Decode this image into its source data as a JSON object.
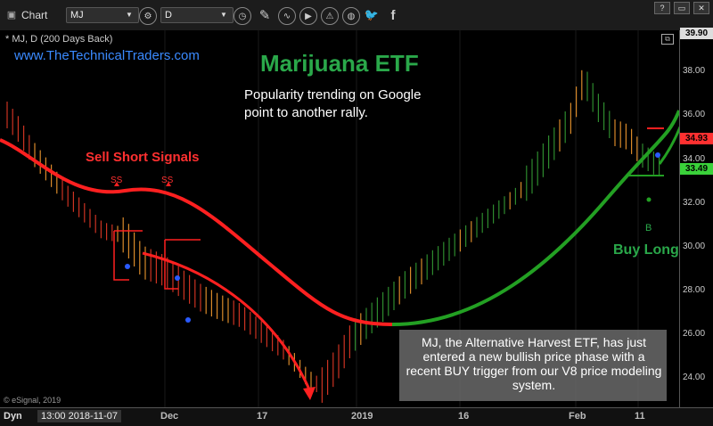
{
  "toolbar": {
    "chart_label": "Chart",
    "symbol": "MJ",
    "interval": "D",
    "icons": [
      "lock-icon",
      "edit-icon",
      "wave-icon",
      "play-icon",
      "alert-icon",
      "globe-icon",
      "twitter-icon",
      "facebook-icon"
    ],
    "window_buttons": [
      "?",
      "▭",
      "✕"
    ]
  },
  "chart_header": {
    "symbol_line": "* MJ, D (200 Days Back)",
    "website": "www.TheTechnicalTraders.com",
    "title": "Marijuana ETF",
    "subtitle_line1": "Popularity trending on Google",
    "subtitle_line2": "point to another rally.",
    "sell_label": "Sell Short Signals",
    "ss_marker": "SS",
    "buy_label": "Buy Long",
    "b_marker": "B",
    "note": "MJ, the Alternative Harvest ETF, has just entered a new bullish price phase with a recent BUY trigger from our V8 price modeling system.",
    "copyright": "© eSignal, 2019"
  },
  "price_axis": {
    "ticks": [
      "38.00",
      "36.00",
      "34.00",
      "32.00",
      "30.00",
      "28.00",
      "26.00",
      "24.00"
    ],
    "tag_top": "39.90",
    "tag_red": "34.93",
    "tag_green": "33.49"
  },
  "time_axis": {
    "dyn": "Dyn",
    "timestamp": "13:00 2018-11-07",
    "labels": [
      "Dec",
      "17",
      "2019",
      "16",
      "Feb",
      "11"
    ]
  },
  "colors": {
    "bull_bar": "#2e8b2e",
    "bear_bar": "#cc3322",
    "warm_bar": "#d98a2a",
    "red_line": "#ff2020",
    "green_line": "#23a023",
    "title_green": "#2aa84a",
    "website_blue": "#3a8aff",
    "tag_red_bg": "#ff3030",
    "tag_green_bg": "#3ad13a"
  }
}
